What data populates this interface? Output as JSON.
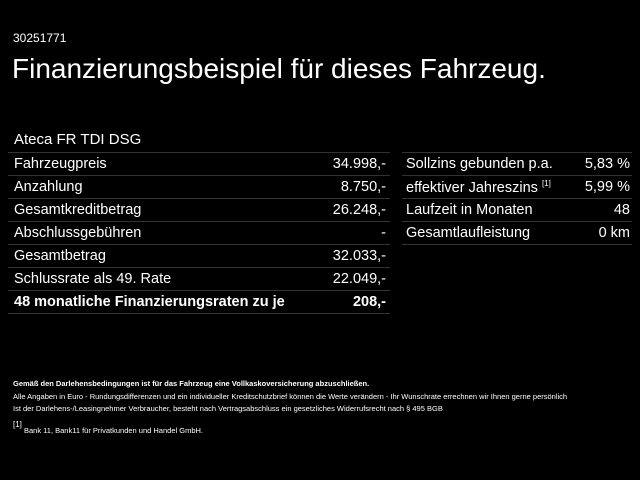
{
  "offer_id": "30251771",
  "title": "Finanzierungsbeispiel für dieses Fahrzeug.",
  "model": "Ateca FR TDI DSG",
  "left_rows": [
    {
      "label": "Fahrzeugpreis",
      "value": "34.998,-"
    },
    {
      "label": "Anzahlung",
      "value": "8.750,-"
    },
    {
      "label": "Gesamtkreditbetrag",
      "value": "26.248,-"
    },
    {
      "label": "Abschlussgebühren",
      "value": "-"
    },
    {
      "label": "Gesamtbetrag",
      "value": "32.033,-"
    },
    {
      "label": "Schlussrate als 49. Rate",
      "value": "22.049,-"
    },
    {
      "label": "48 monatliche Finanzierungsraten zu je",
      "value": "208,-"
    }
  ],
  "right_rows": [
    {
      "label": "Sollzins gebunden p.a.",
      "sup": "",
      "value": "5,83 %"
    },
    {
      "label": "effektiver Jahreszins",
      "sup": "[1]",
      "value": "5,99 %"
    },
    {
      "label": "Laufzeit in Monaten",
      "sup": "",
      "value": "48"
    },
    {
      "label": "Gesamtlaufleistung",
      "sup": "",
      "value": "0 km"
    }
  ],
  "footer": {
    "insurance": "Gemäß den Darlehensbedingungen ist für das Fahrzeug eine Vollkaskoversicherung abzuschließen.",
    "line1": "Alle Angaben in Euro - Rundungsdifferenzen und ein individueller Kreditschutzbrief können die Werte verändern - Ihr Wunschrate errechnen wir Ihnen gerne persönlich",
    "line2": "Ist der Darlehens-/Leasingnehmer Verbraucher, besteht nach Vertragsabschluss ein gesetzliches Widerrufsrecht nach § 495 BGB",
    "note_mark": "[1]",
    "note": "Bank 11, Bank11 für Privatkunden und Handel GmbH."
  }
}
